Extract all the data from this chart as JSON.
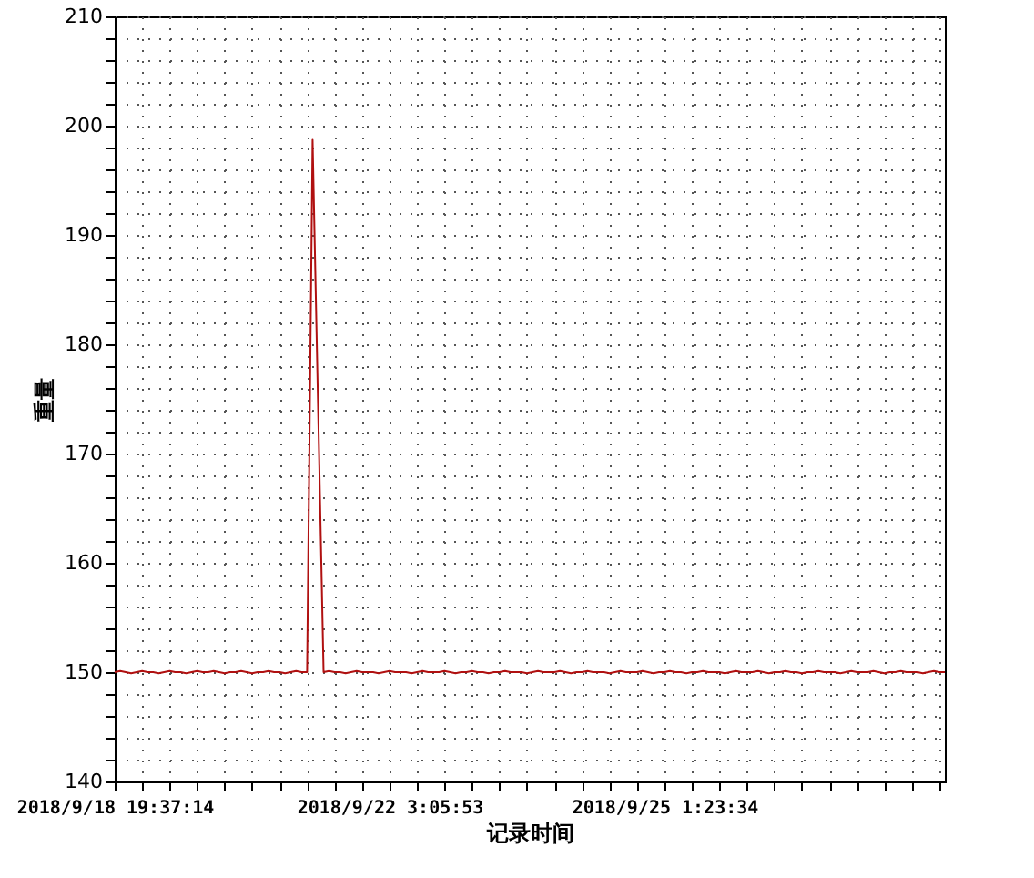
{
  "chart_data": {
    "type": "line",
    "xlabel": "记录时间",
    "ylabel": "重量",
    "grid": true,
    "marker": "none",
    "line_style": "solid",
    "ylim": [
      140,
      210
    ],
    "categories": [
      "2018/9/18 19:37:14",
      null,
      null,
      null,
      null,
      null,
      null,
      null,
      null,
      null,
      null,
      null,
      null,
      null,
      null,
      null,
      null,
      null,
      null,
      null,
      null,
      null,
      null,
      null,
      null,
      null,
      null,
      null,
      null,
      null,
      null,
      null,
      null,
      null,
      null,
      null,
      null,
      null,
      null,
      null,
      null,
      null,
      null,
      null,
      null,
      null,
      null,
      null,
      null,
      null,
      "2018/9/22 3:05:53",
      null,
      null,
      null,
      null,
      null,
      null,
      null,
      null,
      null,
      null,
      null,
      null,
      null,
      null,
      null,
      null,
      null,
      null,
      null,
      null,
      null,
      null,
      null,
      null,
      null,
      null,
      null,
      null,
      null,
      null,
      null,
      null,
      null,
      null,
      null,
      null,
      null,
      null,
      null,
      null,
      null,
      null,
      null,
      null,
      null,
      null,
      null,
      null,
      null,
      "2018/9/25 1:23:34",
      null,
      null,
      null,
      null,
      null,
      null,
      null,
      null,
      null,
      null,
      null,
      null,
      null,
      null,
      null,
      null,
      null,
      null,
      null,
      null,
      null,
      null,
      null,
      null,
      null,
      null,
      null,
      null,
      null,
      null,
      null,
      null,
      null,
      null,
      null,
      null,
      null,
      null,
      null,
      null,
      null,
      null,
      null,
      null,
      null,
      null,
      null,
      null,
      null,
      null,
      null
    ],
    "yticks": [
      140,
      {
        "value": 142,
        "label": null
      },
      {
        "value": 144,
        "label": null
      },
      {
        "value": 146,
        "label": null
      },
      {
        "value": 148,
        "label": null
      },
      150,
      {
        "value": 152,
        "label": null
      },
      {
        "value": 154,
        "label": null
      },
      {
        "value": 156,
        "label": null
      },
      {
        "value": 158,
        "label": null
      },
      160,
      {
        "value": 162,
        "label": null
      },
      {
        "value": 164,
        "label": null
      },
      {
        "value": 166,
        "label": null
      },
      {
        "value": 168,
        "label": null
      },
      170,
      {
        "value": 172,
        "label": null
      },
      {
        "value": 174,
        "label": null
      },
      {
        "value": 176,
        "label": null
      },
      {
        "value": 178,
        "label": null
      },
      180,
      {
        "value": 182,
        "label": null
      },
      {
        "value": 184,
        "label": null
      },
      {
        "value": 186,
        "label": null
      },
      {
        "value": 188,
        "label": null
      },
      190,
      {
        "value": 192,
        "label": null
      },
      {
        "value": 194,
        "label": null
      },
      {
        "value": 196,
        "label": null
      },
      {
        "value": 198,
        "label": null
      },
      200,
      {
        "value": 202,
        "label": null
      },
      {
        "value": 204,
        "label": null
      },
      {
        "value": 206,
        "label": null
      },
      {
        "value": 208,
        "label": null
      },
      210
    ],
    "series": [
      {
        "color": "#b01010",
        "values": [
          150.0,
          150.1,
          150.0,
          149.9,
          150.0,
          150.1,
          150.0,
          150.0,
          149.9,
          150.0,
          150.1,
          150.0,
          150.0,
          149.9,
          150.0,
          150.1,
          150.0,
          150.0,
          150.1,
          150.0,
          149.9,
          150.0,
          150.0,
          150.1,
          150.0,
          149.9,
          150.0,
          150.0,
          150.1,
          150.0,
          150.0,
          149.9,
          150.0,
          150.1,
          150.0,
          150.0,
          198.7,
          174.3,
          150.0,
          150.1,
          150.0,
          150.0,
          149.9,
          150.0,
          150.1,
          150.0,
          150.0,
          150.0,
          149.9,
          150.0,
          150.1,
          150.0,
          150.0,
          150.0,
          149.9,
          150.0,
          150.1,
          150.0,
          150.0,
          150.0,
          150.1,
          150.0,
          149.9,
          150.0,
          150.0,
          150.1,
          150.0,
          150.0,
          149.9,
          150.0,
          150.0,
          150.1,
          150.0,
          150.0,
          150.0,
          149.9,
          150.0,
          150.1,
          150.0,
          150.0,
          150.0,
          150.1,
          150.0,
          149.9,
          150.0,
          150.0,
          150.1,
          150.0,
          150.0,
          150.0,
          149.9,
          150.0,
          150.1,
          150.0,
          150.0,
          150.0,
          150.1,
          150.0,
          149.9,
          150.0,
          150.0,
          150.1,
          150.0,
          150.0,
          149.9,
          150.0,
          150.0,
          150.1,
          150.0,
          150.0,
          150.0,
          149.9,
          150.0,
          150.1,
          150.0,
          150.0,
          150.0,
          150.1,
          150.0,
          149.9,
          150.0,
          150.0,
          150.1,
          150.0,
          150.0,
          149.9,
          150.0,
          150.0,
          150.1,
          150.0,
          150.0,
          150.0,
          149.9,
          150.0,
          150.1,
          150.0,
          150.0,
          150.0,
          150.1,
          150.0,
          149.9,
          150.0,
          150.0,
          150.1,
          150.0,
          150.0,
          150.0,
          149.9,
          150.0,
          150.1,
          150.0,
          150.0
        ]
      }
    ]
  }
}
